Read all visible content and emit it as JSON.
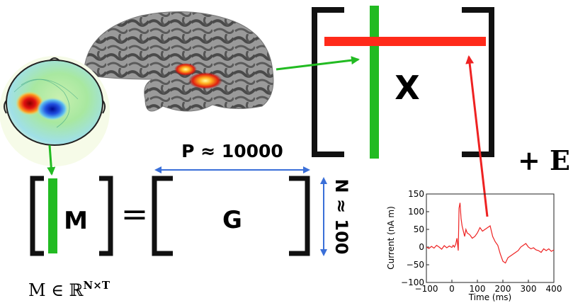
{
  "equation": {
    "x_label": "X",
    "m_label": "M",
    "g_label": "G",
    "equals": "=",
    "plus_e": "+ E",
    "p_dim": "P ≈ 10000",
    "n_dim": "N ≈ 100",
    "m_domain": "M ∈ ℝ",
    "m_domain_sup": "N×T"
  },
  "colors": {
    "source_row": "#ff2a1a",
    "source_col": "#22bb22",
    "dim_arrow": "#3a6fd8",
    "pointer_green": "#22bb22",
    "pointer_red": "#ee2222",
    "bracket": "#111111"
  },
  "chart_data": {
    "type": "line",
    "xlabel": "Time (ms)",
    "ylabel": "Current (nA m)",
    "xlim": [
      -100,
      400
    ],
    "ylim": [
      -100,
      150
    ],
    "xticks": [
      -100,
      0,
      100,
      200,
      300,
      400
    ],
    "yticks": [
      -100,
      -50,
      0,
      50,
      100,
      150
    ],
    "x_tick_labels": [
      "−100",
      "0",
      "100",
      "200",
      "300",
      "400"
    ],
    "y_tick_labels": [
      "−100",
      "−50",
      "0",
      "50",
      "100",
      "150"
    ],
    "series": [
      {
        "color": "#ee2222",
        "x": [
          -100,
          -90,
          -80,
          -70,
          -60,
          -50,
          -40,
          -30,
          -20,
          -10,
          0,
          5,
          10,
          15,
          20,
          25,
          28,
          32,
          36,
          40,
          45,
          50,
          55,
          60,
          70,
          80,
          90,
          100,
          110,
          120,
          130,
          140,
          150,
          160,
          170,
          180,
          190,
          200,
          210,
          220,
          230,
          240,
          250,
          260,
          270,
          280,
          290,
          300,
          310,
          320,
          330,
          340,
          350,
          360,
          370,
          380,
          390,
          400
        ],
        "y": [
          0,
          -4,
          2,
          -3,
          5,
          0,
          -6,
          4,
          -2,
          3,
          -1,
          5,
          0,
          8,
          25,
          -10,
          110,
          125,
          80,
          60,
          45,
          30,
          50,
          40,
          35,
          25,
          30,
          40,
          55,
          45,
          50,
          55,
          60,
          30,
          15,
          5,
          -20,
          -40,
          -45,
          -30,
          -25,
          -20,
          -15,
          -10,
          0,
          5,
          10,
          0,
          -5,
          -2,
          -8,
          -10,
          -15,
          -5,
          -10,
          -5,
          -12,
          -8
        ]
      }
    ]
  }
}
